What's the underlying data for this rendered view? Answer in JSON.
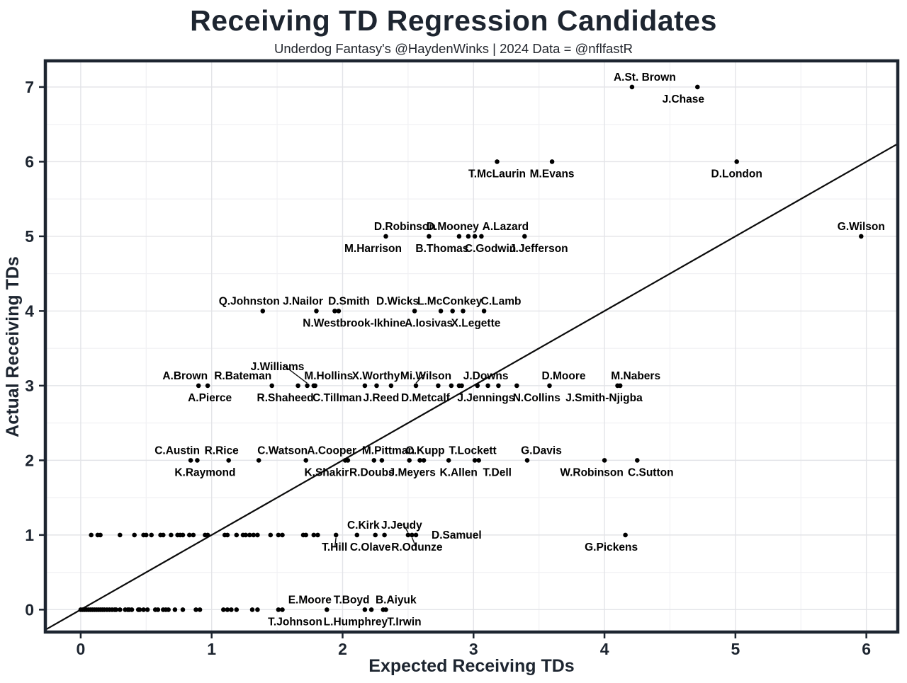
{
  "chart_data": {
    "type": "scatter",
    "title": "Receiving TD Regression Candidates",
    "subtitle": "Underdog Fantasy's @HaydenWinks | 2024 Data = @nflfastR",
    "xlabel": "Expected Receiving TDs",
    "ylabel": "Actual Receiving TDs",
    "xlim": [
      -0.27,
      6.24
    ],
    "ylim": [
      -0.3,
      7.35
    ],
    "xticks": [
      0,
      1,
      2,
      3,
      4,
      5,
      6
    ],
    "yticks": [
      0,
      1,
      2,
      3,
      4,
      5,
      6,
      7
    ],
    "minor_grid_step": 0.5,
    "grid": true,
    "identity_line": true,
    "colors": {
      "ink": "#1d2530",
      "point": "#000000",
      "grid_major": "#e3e4e8",
      "grid_minor": "#f1f1f4",
      "panel_border": "#1d2530",
      "background": "#ffffff"
    },
    "labeled_points": [
      {
        "n": "A.St. Brown",
        "x": 4.21,
        "y": 7,
        "p": "a",
        "dx": 18
      },
      {
        "n": "J.Chase",
        "x": 4.71,
        "y": 7,
        "p": "b",
        "dx": -20
      },
      {
        "n": "T.McLaurin",
        "x": 3.18,
        "y": 6,
        "p": "b"
      },
      {
        "n": "M.Evans",
        "x": 3.6,
        "y": 6,
        "p": "b"
      },
      {
        "n": "D.London",
        "x": 5.01,
        "y": 6,
        "p": "b"
      },
      {
        "n": "M.Harrison",
        "x": 2.33,
        "y": 5,
        "p": "b",
        "dx": -18
      },
      {
        "n": "D.Robinson",
        "x": 2.66,
        "y": 5,
        "p": "a",
        "dx": -34
      },
      {
        "n": "B.Thomas",
        "x": 2.89,
        "y": 5,
        "p": "b",
        "dx": -24
      },
      {
        "n": "D.Mooney",
        "x": 2.96,
        "y": 5,
        "p": "a",
        "dx": -22
      },
      {
        "n": "C.Godwin",
        "x": 3.01,
        "y": 5,
        "p": "b",
        "dx": 22
      },
      {
        "n": "A.Lazard",
        "x": 3.06,
        "y": 5,
        "p": "a",
        "dx": 34
      },
      {
        "n": "J.Jefferson",
        "x": 3.39,
        "y": 5,
        "p": "b",
        "dx": 20
      },
      {
        "n": "G.Wilson",
        "x": 5.96,
        "y": 5,
        "p": "a"
      },
      {
        "n": "Q.Johnston",
        "x": 1.39,
        "y": 4,
        "p": "a",
        "dx": -19
      },
      {
        "n": "J.Nailor",
        "x": 1.8,
        "y": 4,
        "p": "a",
        "dx": -19
      },
      {
        "n": "D.Smith",
        "x": 1.94,
        "y": 4,
        "p": "a",
        "dx": 20
      },
      {
        "n": "N.Westbrook-Ikhine",
        "x": 1.97,
        "y": 4,
        "p": "b",
        "dx": 22
      },
      {
        "n": "D.Wicks",
        "x": 2.55,
        "y": 4,
        "p": "a",
        "dx": -24
      },
      {
        "n": "A.Iosivas",
        "x": 2.75,
        "y": 4,
        "p": "b",
        "dx": -17
      },
      {
        "n": "L.McConkey",
        "x": 2.84,
        "y": 4,
        "p": "a",
        "dx": -4
      },
      {
        "n": "X.Legette",
        "x": 2.92,
        "y": 4,
        "p": "b",
        "dx": 18
      },
      {
        "n": "C.Lamb",
        "x": 3.08,
        "y": 4,
        "p": "a",
        "dx": 24
      },
      {
        "n": "A.Brown",
        "x": 0.9,
        "y": 3,
        "p": "a",
        "dx": -19
      },
      {
        "n": "A.Pierce",
        "x": 0.97,
        "y": 3,
        "p": "b",
        "dx": 3
      },
      {
        "n": "R.Bateman",
        "x": 1.46,
        "y": 3,
        "p": "a",
        "dx": -41
      },
      {
        "n": "R.Shaheed",
        "x": 1.66,
        "y": 3,
        "p": "b",
        "dx": -18
      },
      {
        "n": "J.Williams",
        "x": 1.73,
        "y": 3,
        "p": "a",
        "dx": -42,
        "dy": -13,
        "l": 1
      },
      {
        "n": "M.Hollins",
        "x": 1.78,
        "y": 3,
        "p": "a",
        "dx": 21
      },
      {
        "n": "C.Tillman",
        "x": 2.17,
        "y": 3,
        "p": "b",
        "dx": -39
      },
      {
        "n": "X.Worthy",
        "x": 2.26,
        "y": 3,
        "p": "a",
        "dx": -1
      },
      {
        "n": "J.Reed",
        "x": 2.37,
        "y": 3,
        "p": "b",
        "dx": -14
      },
      {
        "n": "Mi.Wilson",
        "x": 2.56,
        "y": 3,
        "p": "a",
        "dx": 14,
        "l": 1
      },
      {
        "n": "D.Metcalf",
        "x": 2.73,
        "y": 3,
        "p": "b",
        "dx": -18
      },
      {
        "n": "J.Downs",
        "x": 3.11,
        "y": 3,
        "p": "a",
        "dx": -3
      },
      {
        "n": "J.Jennings",
        "x": 3.03,
        "y": 3,
        "p": "b",
        "dx": 12
      },
      {
        "n": "N.Collins",
        "x": 3.33,
        "y": 3,
        "p": "b",
        "dx": 28
      },
      {
        "n": "D.Moore",
        "x": 3.58,
        "y": 3,
        "p": "a",
        "dx": 20
      },
      {
        "n": "J.Smith-Njigba",
        "x": 4.1,
        "y": 3,
        "p": "b",
        "dx": -19
      },
      {
        "n": "M.Nabers",
        "x": 4.12,
        "y": 3,
        "p": "a",
        "dx": 22
      },
      {
        "n": "C.Austin",
        "x": 0.84,
        "y": 2,
        "p": "a",
        "dx": -19
      },
      {
        "n": "K.Raymond",
        "x": 0.89,
        "y": 2,
        "p": "b",
        "dx": 11
      },
      {
        "n": "R.Rice",
        "x": 1.13,
        "y": 2,
        "p": "a",
        "dx": -10
      },
      {
        "n": "C.Watson",
        "x": 1.72,
        "y": 2,
        "p": "a",
        "dx": -33
      },
      {
        "n": "A.Cooper",
        "x": 2.02,
        "y": 2,
        "p": "a",
        "dx": -19
      },
      {
        "n": "K.Shakir",
        "x": 2.04,
        "y": 2,
        "p": "b",
        "dx": -30
      },
      {
        "n": "R.Doubs",
        "x": 2.24,
        "y": 2,
        "p": "b",
        "dx": -3
      },
      {
        "n": "M.Pittman",
        "x": 2.3,
        "y": 2,
        "p": "a",
        "dx": 9
      },
      {
        "n": "J.Meyers",
        "x": 2.51,
        "y": 2,
        "p": "b",
        "dx": 4
      },
      {
        "n": "C.Kupp",
        "x": 2.62,
        "y": 2,
        "p": "a",
        "dx": 2
      },
      {
        "n": "K.Allen",
        "x": 2.81,
        "y": 2,
        "p": "b",
        "dx": 14
      },
      {
        "n": "T.Lockett",
        "x": 3.01,
        "y": 2,
        "p": "a",
        "dx": -3
      },
      {
        "n": "T.Dell",
        "x": 3.04,
        "y": 2,
        "p": "b",
        "dx": 26
      },
      {
        "n": "G.Davis",
        "x": 3.41,
        "y": 2,
        "p": "a",
        "dx": 20
      },
      {
        "n": "W.Robinson",
        "x": 4.0,
        "y": 2,
        "p": "b",
        "dx": -18
      },
      {
        "n": "C.Sutton",
        "x": 4.25,
        "y": 2,
        "p": "b",
        "dx": 19
      },
      {
        "n": "T.Hill",
        "x": 1.95,
        "y": 1,
        "p": "b",
        "dx": -2,
        "l": 1
      },
      {
        "n": "C.Kirk",
        "x": 2.11,
        "y": 1,
        "p": "a",
        "dx": 9
      },
      {
        "n": "C.Olave",
        "x": 2.25,
        "y": 1,
        "p": "b",
        "dx": -7
      },
      {
        "n": "J.Jeudy",
        "x": 2.5,
        "y": 1,
        "p": "a",
        "dx": -9,
        "l": 1
      },
      {
        "n": "R.Odunze",
        "x": 2.53,
        "y": 1,
        "p": "b",
        "dx": 7,
        "l": 1
      },
      {
        "n": "D.Samuel",
        "x": 2.56,
        "y": 1,
        "p": "r"
      },
      {
        "n": "G.Pickens",
        "x": 4.16,
        "y": 1,
        "p": "b",
        "dx": -20
      },
      {
        "n": "E.Moore",
        "x": 1.88,
        "y": 0,
        "p": "a",
        "dx": -24
      },
      {
        "n": "T.Johnson",
        "x": 1.54,
        "y": 0,
        "p": "b",
        "dx": 18
      },
      {
        "n": "T.Boyd",
        "x": 2.22,
        "y": 0,
        "p": "a",
        "dx": -28
      },
      {
        "n": "L.Humphrey",
        "x": 2.17,
        "y": 0,
        "p": "b",
        "dx": -13
      },
      {
        "n": "B.Aiyuk",
        "x": 2.31,
        "y": 0,
        "p": "a",
        "dx": 18
      },
      {
        "n": "T.Irwin",
        "x": 2.33,
        "y": 0,
        "p": "b",
        "dx": 26
      }
    ],
    "unlabeled_points": [
      {
        "y": 3,
        "xs": [
          1.79,
          2.83,
          2.89,
          2.91,
          3.19
        ]
      },
      {
        "y": 2,
        "xs": [
          1.36,
          2.59
        ]
      },
      {
        "y": 1,
        "xs": [
          0.08,
          0.13,
          0.15,
          0.3,
          0.41,
          0.48,
          0.5,
          0.54,
          0.61,
          0.63,
          0.69,
          0.74,
          0.76,
          0.78,
          0.83,
          0.86,
          0.95,
          0.97,
          1.1,
          1.12,
          1.19,
          1.24,
          1.26,
          1.29,
          1.32,
          1.35,
          1.45,
          1.51,
          1.54,
          1.7,
          1.72,
          1.78,
          1.81,
          2.32
        ]
      },
      {
        "y": 0,
        "xs": [
          0.0,
          0.015,
          0.03,
          0.045,
          0.06,
          0.075,
          0.09,
          0.105,
          0.12,
          0.135,
          0.15,
          0.165,
          0.18,
          0.2,
          0.22,
          0.24,
          0.26,
          0.27,
          0.3,
          0.34,
          0.36,
          0.37,
          0.39,
          0.44,
          0.45,
          0.48,
          0.51,
          0.57,
          0.59,
          0.63,
          0.65,
          0.67,
          0.72,
          0.78,
          0.88,
          0.91,
          1.09,
          1.12,
          1.15,
          1.19,
          1.31,
          1.35,
          1.51
        ]
      }
    ]
  }
}
